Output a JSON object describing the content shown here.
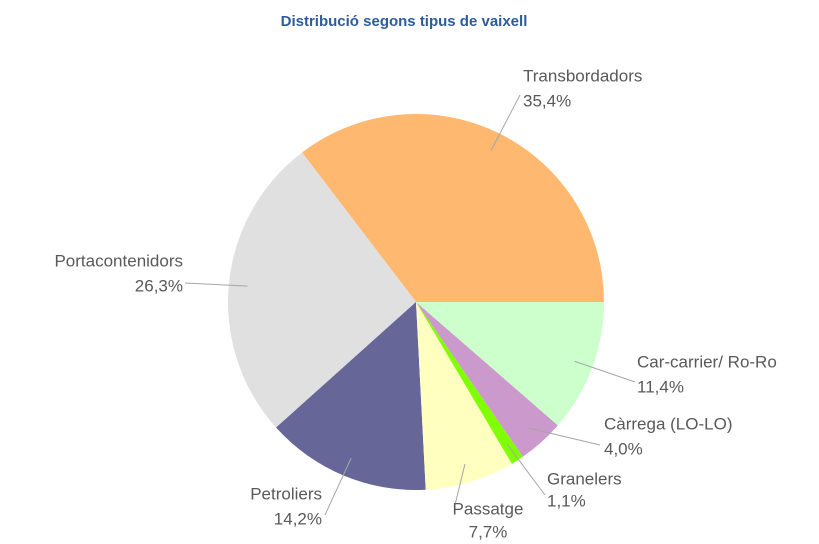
{
  "chart_data": {
    "type": "pie",
    "title": "Distribució segons tipus de vaixell",
    "categories": [
      "Transbordadors",
      "Portacontenidors",
      "Petroliers",
      "Passatge",
      "Granelers",
      "Càrrega (LO-LO)",
      "Car-carrier/ Ro-Ro"
    ],
    "values": [
      35.4,
      26.3,
      14.2,
      7.7,
      1.1,
      4.0,
      11.4
    ],
    "value_labels": [
      "35,4%",
      "26,3%",
      "14,2%",
      "7,7%",
      "1,1%",
      "4,0%",
      "11,4%"
    ],
    "colors": [
      "#ffb870",
      "#e0e0e0",
      "#666699",
      "#ffffc0",
      "#80ff00",
      "#cc99cc",
      "#ccffcc"
    ]
  }
}
